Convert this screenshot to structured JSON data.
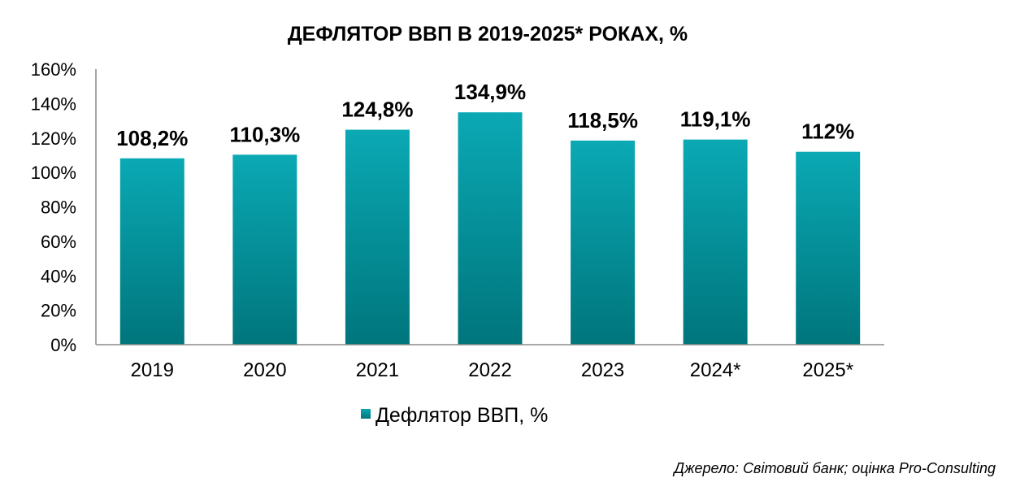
{
  "chart_data": {
    "type": "bar",
    "title": "ДЕФЛЯТОР ВВП В 2019-2025* РОКАХ, %",
    "categories": [
      "2019",
      "2020",
      "2021",
      "2022",
      "2023",
      "2024*",
      "2025*"
    ],
    "series": [
      {
        "name": "Дефлятор ВВП, %",
        "values": [
          108.2,
          110.3,
          124.8,
          134.9,
          118.5,
          119.1,
          112
        ],
        "data_labels": [
          "108,2%",
          "110,3%",
          "124,8%",
          "134,9%",
          "118,5%",
          "119,1%",
          "112%"
        ],
        "color": "#0A9BA5"
      }
    ],
    "y_ticks": [
      "0%",
      "20%",
      "40%",
      "60%",
      "80%",
      "100%",
      "120%",
      "140%",
      "160%"
    ],
    "ylim": [
      0,
      160
    ],
    "grid": false,
    "legend_position": "bottom"
  },
  "source_note": "Джерело: Світовий банк; оцінка Pro-Consulting",
  "colors": {
    "bar_top": "#0AA9B4",
    "bar_bottom": "#00757C",
    "axis": "#8C8C8C"
  }
}
